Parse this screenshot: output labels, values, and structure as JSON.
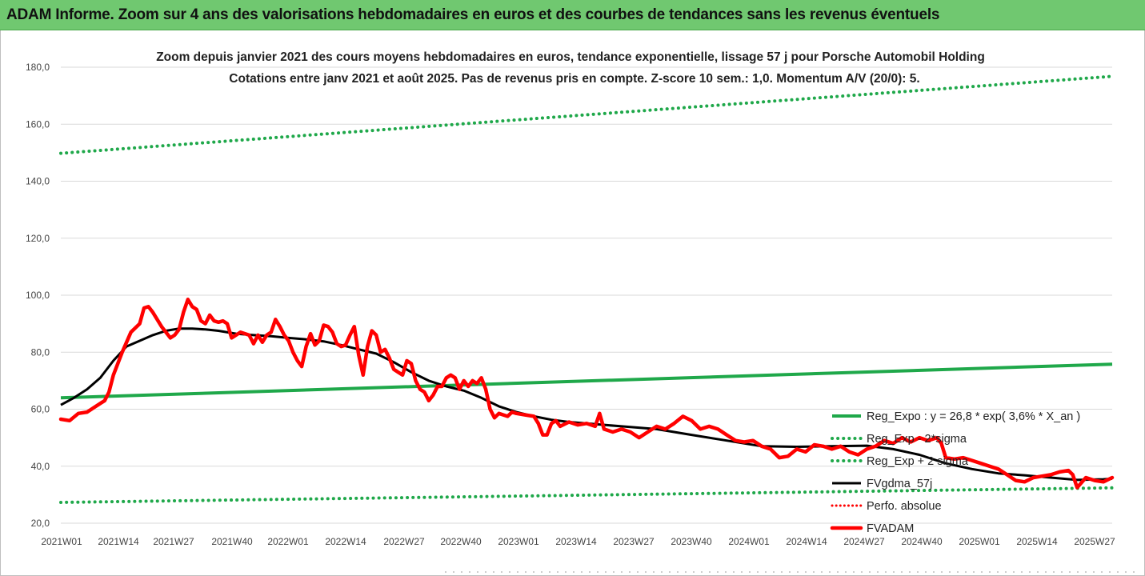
{
  "banner": {
    "title": "ADAM Informe. Zoom sur 4 ans des valorisations hebdomadaires en euros et des courbes de tendances sans les revenus éventuels"
  },
  "chart_data": {
    "type": "line",
    "title": "Zoom depuis janvier 2021 des cours moyens hebdomadaires en euros, tendance exponentielle, lissage 57 j pour Porsche Automobil Holding",
    "subtitle": "Cotations entre janv 2021 et août 2025.  Pas de revenus pris en compte. Z-score 10 sem.: 1,0. Momentum A/V (20/0): 5.",
    "ylim": [
      20,
      180
    ],
    "y_ticks": [
      "20,0",
      "40,0",
      "60,0",
      "80,0",
      "100,0",
      "120,0",
      "140,0",
      "160,0",
      "180,0"
    ],
    "x_ticks": [
      "2021W01",
      "2021W14",
      "2021W27",
      "2021W40",
      "2022W01",
      "2022W14",
      "2022W27",
      "2022W40",
      "2023W01",
      "2023W14",
      "2023W27",
      "2023W40",
      "2024W01",
      "2024W14",
      "2024W27",
      "2024W40",
      "2025W01",
      "2025W14",
      "2025W27"
    ],
    "grid": "horizontal",
    "legend_placement": "right",
    "colors": {
      "trend": "#1fa84a",
      "smooth": "#000000",
      "price": "#ff0000",
      "perf": "#ff0000"
    },
    "series": [
      {
        "name": "Reg_Expo : y = 26,8 * exp( 3,6% *  X_an )",
        "style": "solid-green",
        "points": [
          [
            0,
            64.0
          ],
          [
            240,
            75.8
          ]
        ]
      },
      {
        "name": "Reg_Exp - 2*sigma",
        "style": "dotted-green",
        "points": [
          [
            0,
            27.3
          ],
          [
            240,
            32.4
          ]
        ]
      },
      {
        "name": "Reg_Exp + 2 sigma",
        "style": "dotted-green",
        "points": [
          [
            0,
            149.8
          ],
          [
            240,
            176.8
          ]
        ]
      },
      {
        "name": "FVgdma_57j",
        "style": "solid-black",
        "points": [
          [
            0,
            61.5
          ],
          [
            3,
            64
          ],
          [
            6,
            67
          ],
          [
            9,
            71
          ],
          [
            12,
            77
          ],
          [
            15,
            82
          ],
          [
            18,
            84
          ],
          [
            21,
            86
          ],
          [
            24,
            87.5
          ],
          [
            27,
            88.3
          ],
          [
            30,
            88.3
          ],
          [
            33,
            88
          ],
          [
            36,
            87.5
          ],
          [
            40,
            86.5
          ],
          [
            44,
            86
          ],
          [
            48,
            85.6
          ],
          [
            52,
            85
          ],
          [
            56,
            84.5
          ],
          [
            60,
            83.8
          ],
          [
            64,
            82.5
          ],
          [
            68,
            81
          ],
          [
            72,
            79.5
          ],
          [
            76,
            76.5
          ],
          [
            80,
            73
          ],
          [
            84,
            70
          ],
          [
            88,
            68
          ],
          [
            92,
            66.5
          ],
          [
            96,
            64
          ],
          [
            100,
            61
          ],
          [
            104,
            59
          ],
          [
            108,
            57.5
          ],
          [
            112,
            56.3
          ],
          [
            116,
            55.5
          ],
          [
            120,
            55
          ],
          [
            128,
            54
          ],
          [
            136,
            53
          ],
          [
            144,
            51
          ],
          [
            152,
            49
          ],
          [
            160,
            47
          ],
          [
            168,
            46.8
          ],
          [
            176,
            47
          ],
          [
            184,
            47.2
          ],
          [
            190,
            46
          ],
          [
            196,
            44
          ],
          [
            202,
            41
          ],
          [
            208,
            39
          ],
          [
            214,
            37.5
          ],
          [
            220,
            36.8
          ],
          [
            226,
            36
          ],
          [
            232,
            35.2
          ],
          [
            238,
            35.4
          ],
          [
            240,
            35.6
          ]
        ]
      },
      {
        "name": "Perfo. absolue",
        "style": "dotted-red",
        "points": []
      },
      {
        "name": "FVADAM",
        "style": "solid-red",
        "points": [
          [
            0,
            56.5
          ],
          [
            2,
            56
          ],
          [
            4,
            58.5
          ],
          [
            6,
            59
          ],
          [
            8,
            61
          ],
          [
            10,
            63
          ],
          [
            11,
            66
          ],
          [
            12,
            72
          ],
          [
            14,
            80
          ],
          [
            16,
            87
          ],
          [
            18,
            90
          ],
          [
            19,
            95.5
          ],
          [
            20,
            96
          ],
          [
            21,
            94
          ],
          [
            23,
            89
          ],
          [
            25,
            85
          ],
          [
            26,
            86
          ],
          [
            27,
            88
          ],
          [
            28,
            94
          ],
          [
            29,
            98.5
          ],
          [
            30,
            96
          ],
          [
            31,
            95
          ],
          [
            32,
            91
          ],
          [
            33,
            90
          ],
          [
            34,
            93
          ],
          [
            35,
            91
          ],
          [
            36,
            90.5
          ],
          [
            37,
            91
          ],
          [
            38,
            90
          ],
          [
            39,
            85
          ],
          [
            40,
            86
          ],
          [
            41,
            87
          ],
          [
            43,
            86
          ],
          [
            44,
            83
          ],
          [
            45,
            86
          ],
          [
            46,
            83.5
          ],
          [
            47,
            86
          ],
          [
            48,
            87
          ],
          [
            49,
            91.5
          ],
          [
            50,
            89
          ],
          [
            51,
            86
          ],
          [
            52,
            84
          ],
          [
            53,
            80
          ],
          [
            54,
            77
          ],
          [
            55,
            75
          ],
          [
            56,
            82
          ],
          [
            57,
            86.5
          ],
          [
            58,
            82.5
          ],
          [
            59,
            84
          ],
          [
            60,
            89.5
          ],
          [
            61,
            89
          ],
          [
            62,
            87
          ],
          [
            63,
            83
          ],
          [
            64,
            82
          ],
          [
            65,
            82.5
          ],
          [
            66,
            86
          ],
          [
            67,
            89
          ],
          [
            68,
            79
          ],
          [
            69,
            72
          ],
          [
            70,
            82
          ],
          [
            71,
            87.5
          ],
          [
            72,
            86
          ],
          [
            73,
            80
          ],
          [
            74,
            81
          ],
          [
            75,
            78
          ],
          [
            76,
            74
          ],
          [
            77,
            73
          ],
          [
            78,
            72
          ],
          [
            79,
            77
          ],
          [
            80,
            76
          ],
          [
            81,
            70
          ],
          [
            82,
            67
          ],
          [
            83,
            66
          ],
          [
            84,
            63
          ],
          [
            85,
            65
          ],
          [
            86,
            68
          ],
          [
            87,
            68
          ],
          [
            88,
            71
          ],
          [
            89,
            72
          ],
          [
            90,
            71
          ],
          [
            91,
            67
          ],
          [
            92,
            70
          ],
          [
            93,
            68
          ],
          [
            94,
            70
          ],
          [
            95,
            69
          ],
          [
            96,
            71
          ],
          [
            97,
            67
          ],
          [
            98,
            60
          ],
          [
            99,
            57
          ],
          [
            100,
            58.5
          ],
          [
            101,
            58
          ],
          [
            102,
            57.5
          ],
          [
            103,
            59
          ],
          [
            104,
            58.5
          ],
          [
            106,
            58
          ],
          [
            108,
            57.5
          ],
          [
            109,
            55
          ],
          [
            110,
            51
          ],
          [
            111,
            51
          ],
          [
            112,
            55
          ],
          [
            113,
            56
          ],
          [
            114,
            54
          ],
          [
            116,
            55.5
          ],
          [
            118,
            54.5
          ],
          [
            120,
            55
          ],
          [
            122,
            54
          ],
          [
            123,
            58.5
          ],
          [
            124,
            53
          ],
          [
            126,
            52
          ],
          [
            128,
            53
          ],
          [
            130,
            52
          ],
          [
            132,
            50
          ],
          [
            134,
            52
          ],
          [
            136,
            54
          ],
          [
            138,
            53
          ],
          [
            140,
            55
          ],
          [
            142,
            57.5
          ],
          [
            144,
            56
          ],
          [
            146,
            53
          ],
          [
            148,
            54
          ],
          [
            150,
            53
          ],
          [
            152,
            51
          ],
          [
            154,
            49
          ],
          [
            156,
            48.5
          ],
          [
            158,
            49
          ],
          [
            160,
            47
          ],
          [
            162,
            46
          ],
          [
            164,
            43
          ],
          [
            166,
            43.5
          ],
          [
            168,
            46
          ],
          [
            170,
            45
          ],
          [
            172,
            47.5
          ],
          [
            174,
            47
          ],
          [
            176,
            46
          ],
          [
            178,
            47
          ],
          [
            180,
            45
          ],
          [
            182,
            44
          ],
          [
            184,
            46
          ],
          [
            186,
            47
          ],
          [
            188,
            49
          ],
          [
            190,
            48
          ],
          [
            192,
            50
          ],
          [
            194,
            48.5
          ],
          [
            196,
            50
          ],
          [
            198,
            49
          ],
          [
            200,
            50
          ],
          [
            201,
            48
          ],
          [
            202,
            43
          ],
          [
            204,
            42.5
          ],
          [
            206,
            43
          ],
          [
            208,
            42
          ],
          [
            210,
            41
          ],
          [
            212,
            40
          ],
          [
            214,
            39
          ],
          [
            216,
            37
          ],
          [
            218,
            35
          ],
          [
            220,
            34.5
          ],
          [
            222,
            36
          ],
          [
            224,
            36.5
          ],
          [
            226,
            37
          ],
          [
            228,
            38
          ],
          [
            230,
            38.5
          ],
          [
            231,
            37
          ],
          [
            232,
            32.5
          ],
          [
            234,
            36
          ],
          [
            236,
            35
          ],
          [
            238,
            34.5
          ],
          [
            240,
            36
          ]
        ]
      }
    ]
  }
}
